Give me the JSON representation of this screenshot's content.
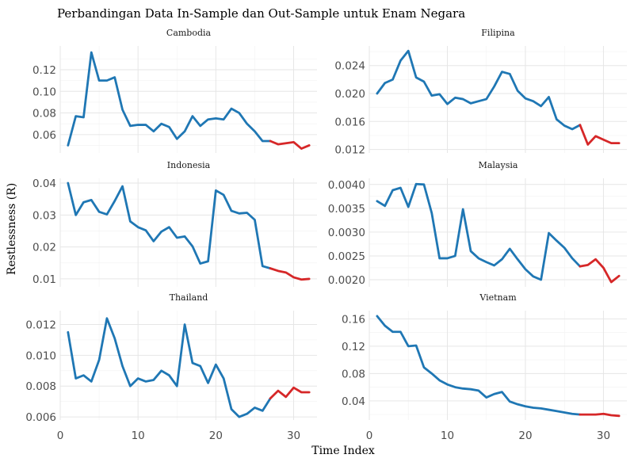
{
  "chart_data": {
    "type": "line",
    "title": "Perbandingan Data In-Sample dan Out-Sample untuk Enam Negara",
    "xlabel": "Time Index",
    "ylabel": "Restlessness (R)",
    "xlim": [
      0,
      33
    ],
    "xticks": [
      0,
      10,
      20,
      30
    ],
    "grid": true,
    "legend": "none",
    "colors": {
      "in_sample": "#1f77b4",
      "out_sample": "#d62728"
    },
    "split_index": 27,
    "panels": [
      {
        "name": "Cambodia",
        "ylim": [
          0.043,
          0.142
        ],
        "yticks": [
          0.06,
          0.08,
          0.1,
          0.12
        ],
        "ytick_labels": [
          "0.06",
          "0.08",
          "0.10",
          "0.12"
        ],
        "x": [
          1,
          2,
          3,
          4,
          5,
          6,
          7,
          8,
          9,
          10,
          11,
          12,
          13,
          14,
          15,
          16,
          17,
          18,
          19,
          20,
          21,
          22,
          23,
          24,
          25,
          26,
          27,
          28,
          29,
          30,
          31,
          32
        ],
        "y": [
          0.05,
          0.077,
          0.076,
          0.136,
          0.11,
          0.11,
          0.113,
          0.083,
          0.068,
          0.069,
          0.069,
          0.063,
          0.07,
          0.067,
          0.056,
          0.063,
          0.077,
          0.068,
          0.074,
          0.075,
          0.074,
          0.084,
          0.08,
          0.07,
          0.063,
          0.054,
          0.054,
          0.051,
          0.052,
          0.053,
          0.047,
          0.05
        ]
      },
      {
        "name": "Filipina",
        "ylim": [
          0.0115,
          0.0268
        ],
        "yticks": [
          0.012,
          0.016,
          0.02,
          0.024
        ],
        "ytick_labels": [
          "0.012",
          "0.016",
          "0.020",
          "0.024"
        ],
        "x": [
          1,
          2,
          3,
          4,
          5,
          6,
          7,
          8,
          9,
          10,
          11,
          12,
          13,
          14,
          15,
          16,
          17,
          18,
          19,
          20,
          21,
          22,
          23,
          24,
          25,
          26,
          27,
          28,
          29,
          30,
          31,
          32
        ],
        "y": [
          0.02,
          0.0215,
          0.022,
          0.0247,
          0.0261,
          0.0223,
          0.0217,
          0.0197,
          0.0199,
          0.0185,
          0.0194,
          0.0192,
          0.0186,
          0.0189,
          0.0192,
          0.021,
          0.0231,
          0.0228,
          0.0204,
          0.0193,
          0.0189,
          0.0182,
          0.0195,
          0.0163,
          0.0154,
          0.0149,
          0.0155,
          0.0127,
          0.0139,
          0.0134,
          0.0129,
          0.0129
        ]
      },
      {
        "name": "Indonesia",
        "ylim": [
          0.0075,
          0.0415
        ],
        "yticks": [
          0.01,
          0.02,
          0.03,
          0.04
        ],
        "ytick_labels": [
          "0.01",
          "0.02",
          "0.03",
          "0.04"
        ],
        "x": [
          1,
          2,
          3,
          4,
          5,
          6,
          7,
          8,
          9,
          10,
          11,
          12,
          13,
          14,
          15,
          16,
          17,
          18,
          19,
          20,
          21,
          22,
          23,
          24,
          25,
          26,
          27,
          28,
          29,
          30,
          31,
          32
        ],
        "y": [
          0.04,
          0.03,
          0.034,
          0.0347,
          0.031,
          0.0302,
          0.0344,
          0.039,
          0.028,
          0.0262,
          0.0252,
          0.0218,
          0.0248,
          0.0262,
          0.0229,
          0.0233,
          0.0202,
          0.0148,
          0.0155,
          0.0377,
          0.0363,
          0.0313,
          0.0305,
          0.0307,
          0.0285,
          0.014,
          0.0133,
          0.0125,
          0.012,
          0.0105,
          0.0098,
          0.01
        ]
      },
      {
        "name": "Malaysia",
        "ylim": [
          0.00185,
          0.00413
        ],
        "yticks": [
          0.002,
          0.0025,
          0.003,
          0.0035,
          0.004
        ],
        "ytick_labels": [
          "0.0020",
          "0.0025",
          "0.0030",
          "0.0035",
          "0.0040"
        ],
        "x": [
          1,
          2,
          3,
          4,
          5,
          6,
          7,
          8,
          9,
          10,
          11,
          12,
          13,
          14,
          15,
          16,
          17,
          18,
          19,
          20,
          21,
          22,
          23,
          24,
          25,
          26,
          27,
          28,
          29,
          30,
          31,
          32
        ],
        "y": [
          0.00365,
          0.00355,
          0.00388,
          0.00393,
          0.00353,
          0.00401,
          0.004,
          0.0034,
          0.00245,
          0.00245,
          0.0025,
          0.00348,
          0.0026,
          0.00245,
          0.00237,
          0.0023,
          0.00243,
          0.00265,
          0.00243,
          0.00222,
          0.00207,
          0.002,
          0.00298,
          0.00282,
          0.00267,
          0.00245,
          0.00228,
          0.00231,
          0.00243,
          0.00225,
          0.00195,
          0.00208
        ]
      },
      {
        "name": "Thailand",
        "ylim": [
          0.0058,
          0.0129
        ],
        "yticks": [
          0.006,
          0.008,
          0.01,
          0.012
        ],
        "ytick_labels": [
          "0.006",
          "0.008",
          "0.010",
          "0.012"
        ],
        "x": [
          1,
          2,
          3,
          4,
          5,
          6,
          7,
          8,
          9,
          10,
          11,
          12,
          13,
          14,
          15,
          16,
          17,
          18,
          19,
          20,
          21,
          22,
          23,
          24,
          25,
          26,
          27,
          28,
          29,
          30,
          31,
          32
        ],
        "y": [
          0.0115,
          0.0085,
          0.0087,
          0.0083,
          0.0097,
          0.0124,
          0.0111,
          0.0093,
          0.008,
          0.0085,
          0.0083,
          0.0084,
          0.009,
          0.0087,
          0.008,
          0.012,
          0.0095,
          0.0093,
          0.0082,
          0.0094,
          0.0085,
          0.0065,
          0.006,
          0.0062,
          0.0066,
          0.0064,
          0.0072,
          0.0077,
          0.0073,
          0.0079,
          0.0076,
          0.0076
        ]
      },
      {
        "name": "Vietnam",
        "ylim": [
          0.012,
          0.172
        ],
        "yticks": [
          0.04,
          0.08,
          0.12,
          0.16
        ],
        "ytick_labels": [
          "0.04",
          "0.08",
          "0.12",
          "0.16"
        ],
        "x": [
          1,
          2,
          3,
          4,
          5,
          6,
          7,
          8,
          9,
          10,
          11,
          12,
          13,
          14,
          15,
          16,
          17,
          18,
          19,
          20,
          21,
          22,
          23,
          24,
          25,
          26,
          27,
          28,
          29,
          30,
          31,
          32
        ],
        "y": [
          0.164,
          0.15,
          0.141,
          0.141,
          0.12,
          0.121,
          0.089,
          0.08,
          0.07,
          0.064,
          0.06,
          0.058,
          0.057,
          0.055,
          0.045,
          0.05,
          0.053,
          0.039,
          0.035,
          0.032,
          0.03,
          0.029,
          0.027,
          0.025,
          0.023,
          0.021,
          0.02,
          0.02,
          0.02,
          0.021,
          0.019,
          0.018
        ]
      }
    ]
  }
}
